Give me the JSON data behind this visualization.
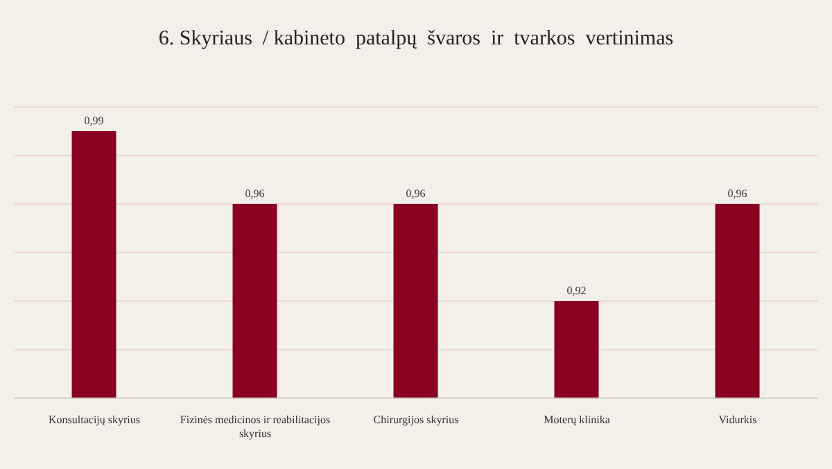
{
  "chart_data": {
    "type": "bar",
    "title": "6. Skyriaus  / kabineto  patalpų  švaros  ir  tvarkos  vertinimas",
    "categories": [
      "Konsultacijų skyrius",
      "Fizinės medicinos ir reabilitacijos skyrius",
      "Chirurgijos skyrius",
      "Moterų klinika",
      "Vidurkis"
    ],
    "values": [
      0.99,
      0.96,
      0.96,
      0.92,
      0.96
    ],
    "color": "#8a0020",
    "ylim": [
      0.88,
      1.0
    ],
    "yticks": [
      {
        "value": 0.88,
        "label": null
      },
      {
        "value": 0.9,
        "label": null
      },
      {
        "value": 0.92,
        "label": null
      },
      {
        "value": 0.94,
        "label": null
      },
      {
        "value": 0.96,
        "label": null
      },
      {
        "value": 0.98,
        "label": null
      },
      {
        "value": 1.0,
        "label": null
      }
    ],
    "value_labels": [
      "0,99",
      "0,96",
      "0,96",
      "0,92",
      "0,96"
    ],
    "grid": "y",
    "tick_labels": "x"
  }
}
